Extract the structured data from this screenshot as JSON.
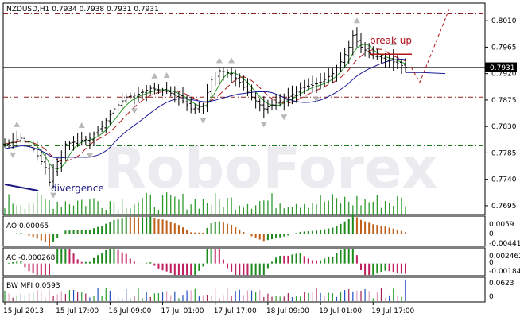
{
  "chart_data": {
    "type": "candlestick",
    "symbol_line": "NZDUSD,H1  0.7934 0.7938 0.7931 0.7931",
    "price_axis": {
      "min": 0.768,
      "max": 0.804,
      "ticks": [
        "0.8010",
        "0.7965",
        "0.7920",
        "0.7875",
        "0.7830",
        "0.7785",
        "0.7740",
        "0.7695"
      ]
    },
    "current_price": "0.7931",
    "x_ticks": [
      "15 Jul 2013",
      "15 Jul 17:00",
      "16 Jul 09:00",
      "17 Jul 01:00",
      "17 Jul 17:00",
      "18 Jul 09:00",
      "19 Jul 01:00",
      "19 Jul 17:00"
    ],
    "bars": 100,
    "close_anchors": [
      [
        0,
        0.78
      ],
      [
        4,
        0.781
      ],
      [
        7,
        0.779
      ],
      [
        10,
        0.776
      ],
      [
        11,
        0.7735
      ],
      [
        13,
        0.777
      ],
      [
        15,
        0.78
      ],
      [
        18,
        0.7805
      ],
      [
        21,
        0.781
      ],
      [
        24,
        0.783
      ],
      [
        27,
        0.786
      ],
      [
        30,
        0.788
      ],
      [
        33,
        0.7885
      ],
      [
        36,
        0.7895
      ],
      [
        40,
        0.789
      ],
      [
        43,
        0.788
      ],
      [
        46,
        0.786
      ],
      [
        49,
        0.7865
      ],
      [
        51,
        0.791
      ],
      [
        53,
        0.7925
      ],
      [
        56,
        0.792
      ],
      [
        58,
        0.7905
      ],
      [
        61,
        0.788
      ],
      [
        64,
        0.786
      ],
      [
        67,
        0.787
      ],
      [
        70,
        0.788
      ],
      [
        73,
        0.7895
      ],
      [
        76,
        0.79
      ],
      [
        78,
        0.7905
      ],
      [
        81,
        0.792
      ],
      [
        83,
        0.794
      ],
      [
        85,
        0.7965
      ],
      [
        86,
        0.7985
      ],
      [
        88,
        0.7965
      ],
      [
        91,
        0.795
      ],
      [
        94,
        0.7945
      ],
      [
        96,
        0.794
      ],
      [
        99,
        0.7931
      ]
    ],
    "horizontal_levels": [
      {
        "price": 0.8023,
        "color": "#8b2020"
      },
      {
        "price": 0.788,
        "color": "#8b2020"
      },
      {
        "price": 0.7797,
        "color": "#1e7a1e"
      },
      {
        "price": 0.7931,
        "color": "#000000"
      }
    ],
    "annotations": {
      "break_up": "break up",
      "divergence": "divergence"
    },
    "indicators": [
      {
        "name": "AO",
        "label": "AO 0.00065",
        "ticks": [
          "0.0059",
          "0",
          "-0.00441"
        ],
        "min": -0.0046,
        "max": 0.0062
      },
      {
        "name": "AC",
        "label": "AC -0.000268",
        "ticks": [
          "0.002462",
          "0",
          "-0.00184"
        ],
        "min": -0.002,
        "max": 0.0026
      },
      {
        "name": "BW MFI",
        "label": "BW MFI 0.0593",
        "ticks": [
          "0.0623",
          "0"
        ],
        "min": 0,
        "max": 0.066
      }
    ]
  },
  "watermark": "RoboForex"
}
